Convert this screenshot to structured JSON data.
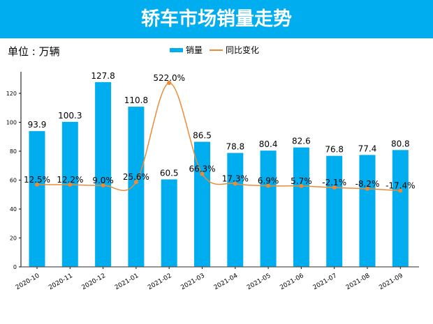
{
  "header": {
    "title": "轿车市场销量走势"
  },
  "unit_label": "单位 : 万辆",
  "colors": {
    "header": "#00aeef",
    "bar": "#00aeef",
    "line": "#ed8b35"
  },
  "chart_data": {
    "type": "bar+line",
    "categories": [
      "2020-10",
      "2020-11",
      "2020-12",
      "2021-01",
      "2021-02",
      "2021-03",
      "2021-04",
      "2021-05",
      "2021-06",
      "2021-07",
      "2021-08",
      "2021-09"
    ],
    "series": [
      {
        "name": "销量",
        "type": "bar",
        "values": [
          93.9,
          100.3,
          127.8,
          110.8,
          60.5,
          86.5,
          78.8,
          80.4,
          82.6,
          76.8,
          77.4,
          80.8
        ],
        "labels": [
          "93.9",
          "100.3",
          "127.8",
          "110.8",
          "60.5",
          "86.5",
          "78.8",
          "80.4",
          "82.6",
          "76.8",
          "77.4",
          "80.8"
        ]
      },
      {
        "name": "同比变化",
        "type": "line",
        "smooth": true,
        "axis": "secondary-hidden",
        "values": [
          12.5,
          12.2,
          9.0,
          25.6,
          522.0,
          66.3,
          17.3,
          6.9,
          5.7,
          -2.1,
          -8.2,
          -17.4
        ],
        "labels": [
          "12.5%",
          "12.2%",
          "9.0%",
          "25.6%",
          "522.0%",
          "66.3%",
          "17.3%",
          "6.9%",
          "5.7%",
          "-2.1%",
          "-8.2%",
          "-17.4%"
        ]
      }
    ],
    "yticks": [
      "0",
      "20",
      "40",
      "60",
      "80",
      "100",
      "120"
    ],
    "ylim": [
      0,
      134
    ],
    "legend": "top-center",
    "grid": false
  }
}
